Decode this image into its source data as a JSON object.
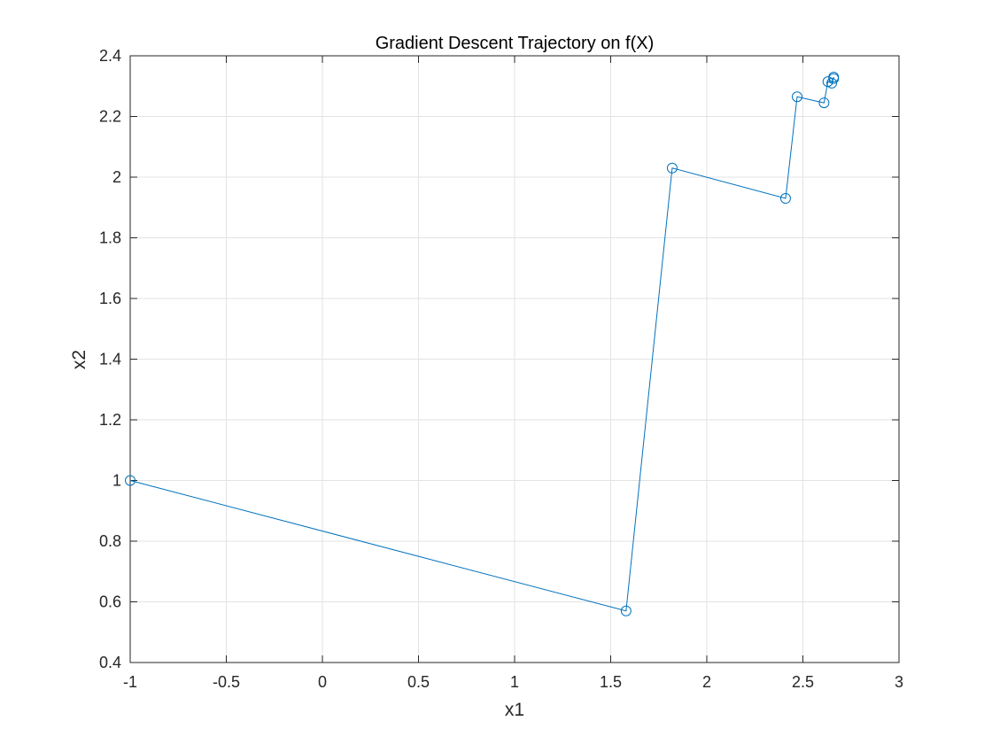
{
  "chart_data": {
    "type": "line",
    "title": "Gradient Descent Trajectory on f(X)",
    "xlabel": "x1",
    "ylabel": "x2",
    "xlim": [
      -1,
      3
    ],
    "ylim": [
      0.4,
      2.4
    ],
    "xticks": [
      -1,
      -0.5,
      0,
      0.5,
      1,
      1.5,
      2,
      2.5,
      3
    ],
    "yticks": [
      0.4,
      0.6,
      0.8,
      1,
      1.2,
      1.4,
      1.6,
      1.8,
      2,
      2.2,
      2.4
    ],
    "xtick_labels": [
      "-1",
      "-0.5",
      "0",
      "0.5",
      "1",
      "1.5",
      "2",
      "2.5",
      "3"
    ],
    "ytick_labels": [
      "0.4",
      "0.6",
      "0.8",
      "1",
      "1.2",
      "1.4",
      "1.6",
      "1.8",
      "2",
      "2.2",
      "2.4"
    ],
    "grid": true,
    "line_color": "#0072BD",
    "marker": "circle-open",
    "series": [
      {
        "x": [
          -1.0,
          1.58,
          1.82,
          2.41,
          2.47,
          2.61,
          2.63,
          2.65,
          2.66,
          2.66
        ],
        "y": [
          1.0,
          0.57,
          2.03,
          1.93,
          2.265,
          2.245,
          2.315,
          2.31,
          2.325,
          2.33
        ]
      }
    ]
  }
}
